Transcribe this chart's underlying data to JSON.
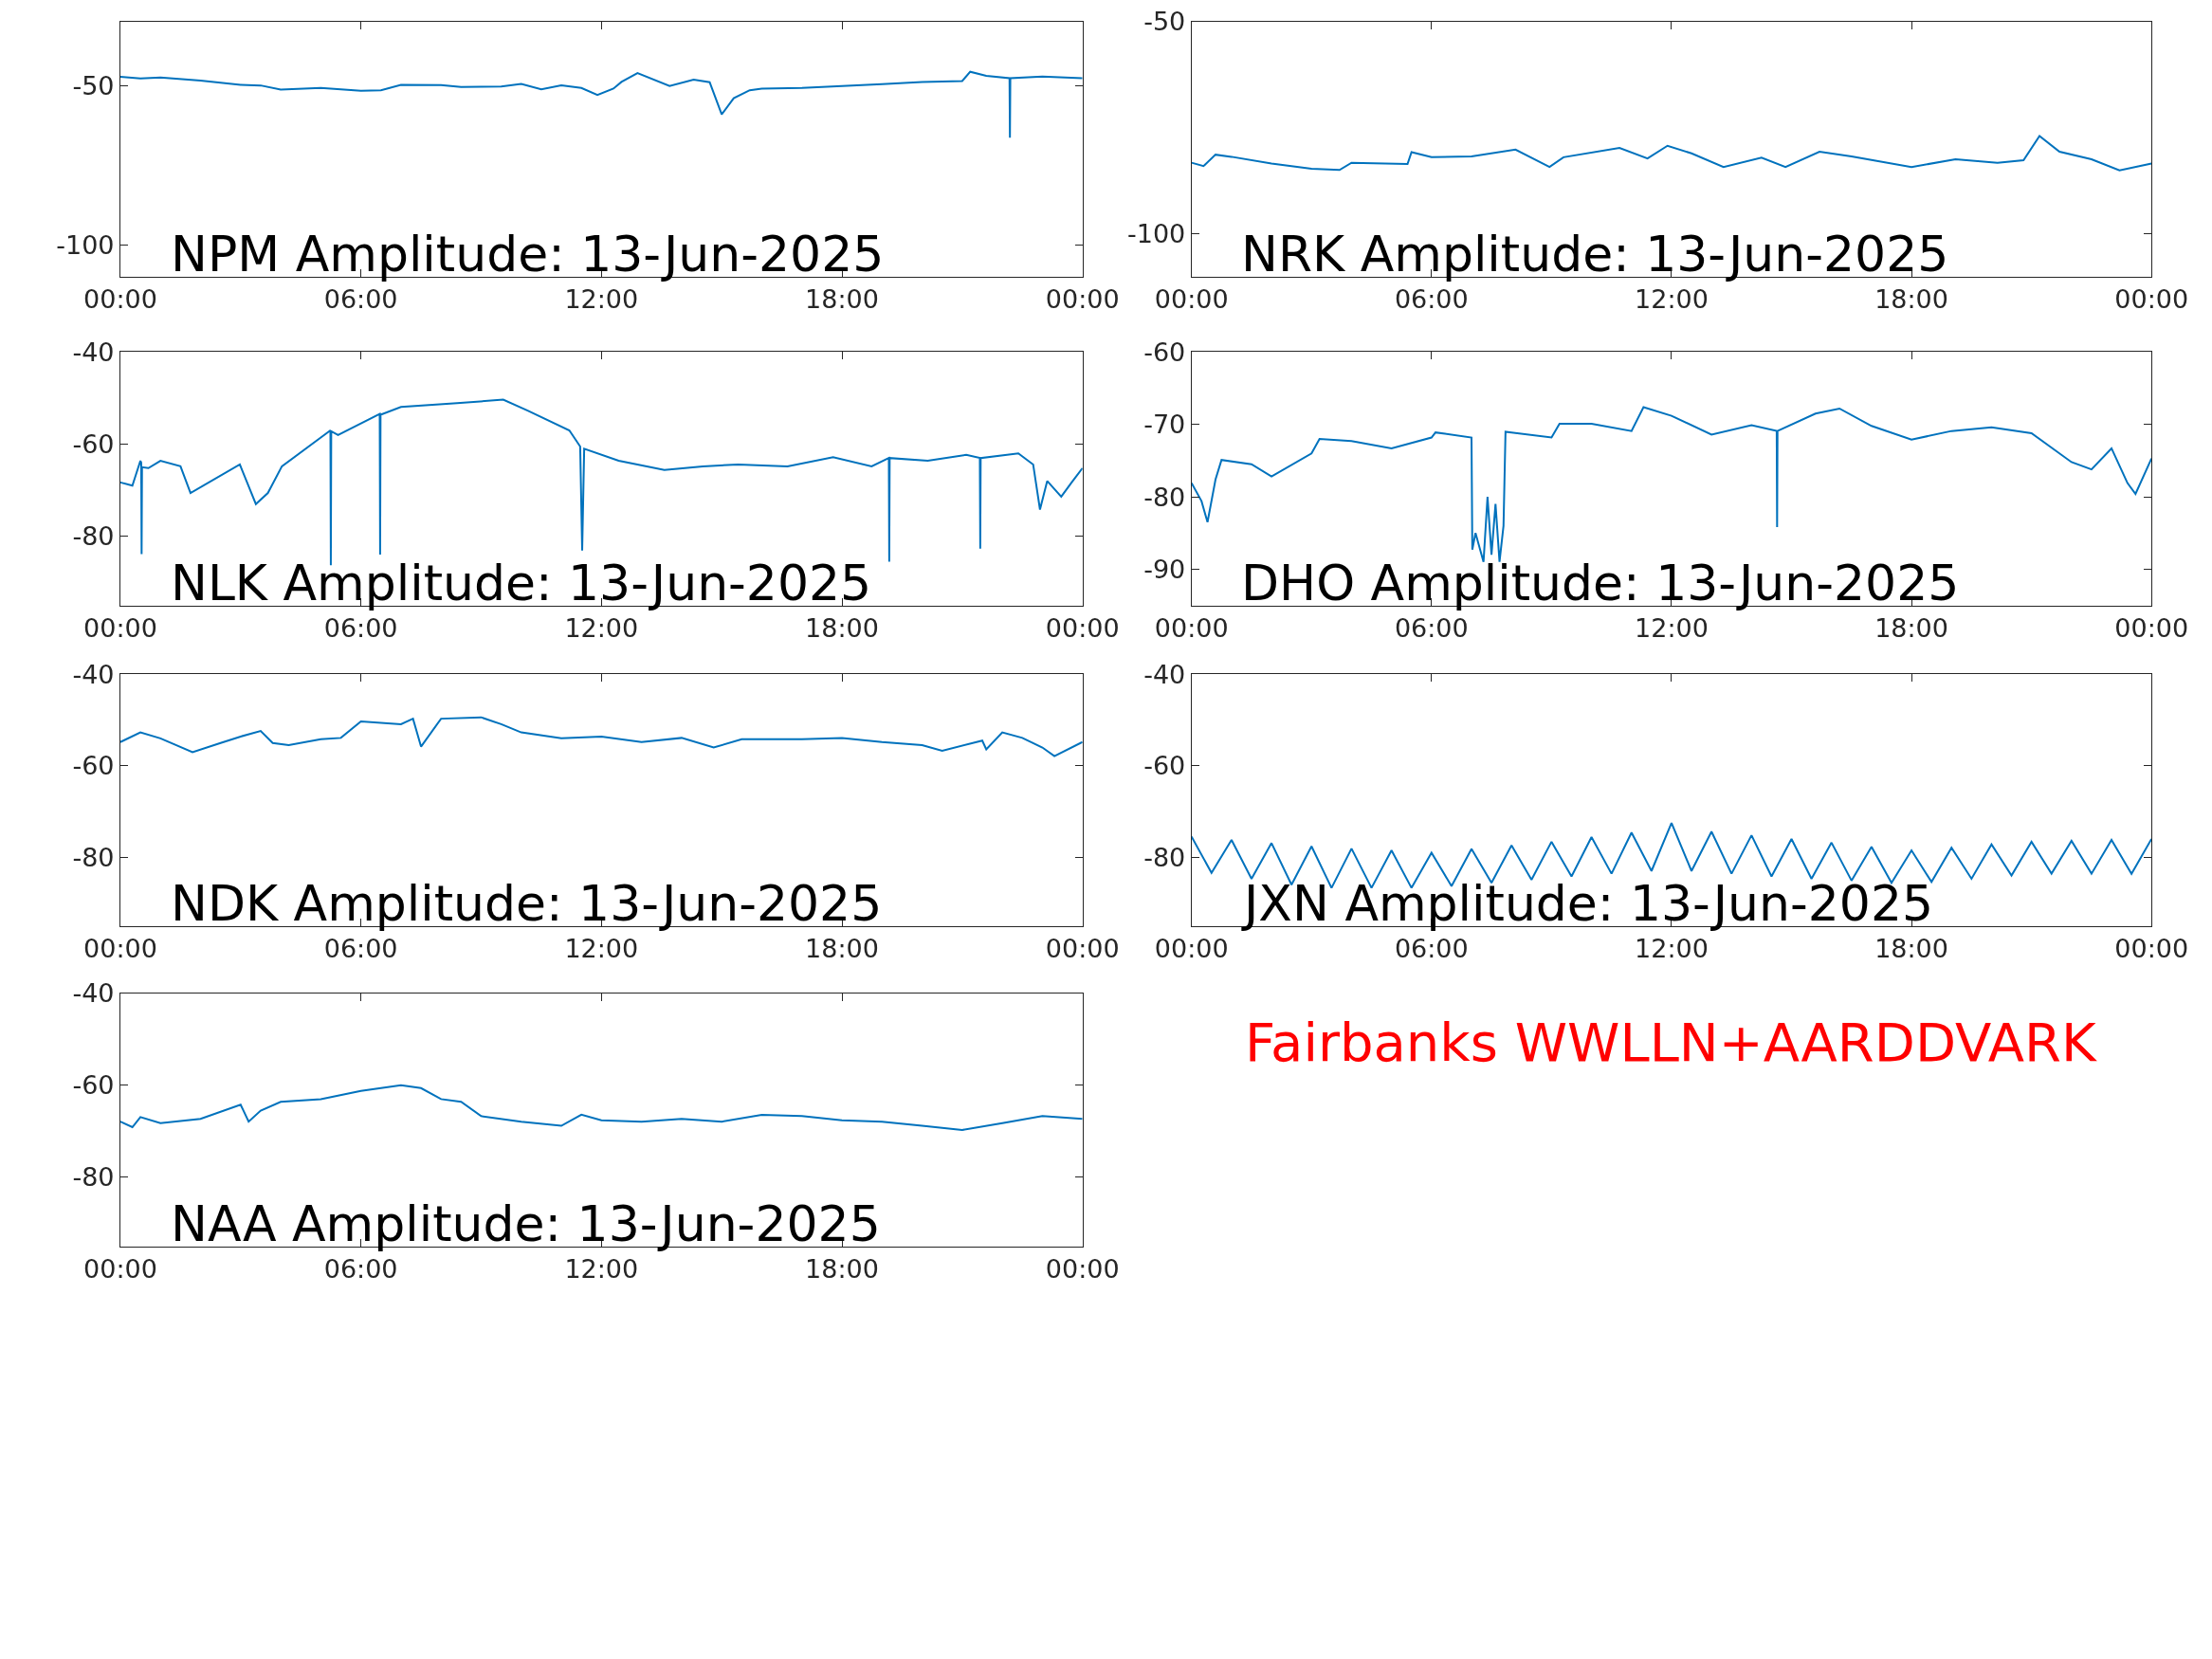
{
  "chart_data": [
    {
      "type": "line",
      "title": "NPM Amplitude: 13-Jun-2025",
      "xlim": [
        0,
        24
      ],
      "xticks": [
        {
          "value": 0,
          "label": "00:00"
        },
        {
          "value": 6,
          "label": "06:00"
        },
        {
          "value": 12,
          "label": "12:00"
        },
        {
          "value": 18,
          "label": "18:00"
        },
        {
          "value": 24,
          "label": "00:00"
        }
      ],
      "ylim": [
        -110,
        -30
      ],
      "yticks": [
        -50,
        -100
      ],
      "x": [
        0,
        0.5,
        1,
        2,
        3,
        3.5,
        4,
        5,
        6,
        6.5,
        7,
        8,
        8.5,
        9,
        9.5,
        10,
        10.5,
        11,
        11.5,
        11.9,
        12.3,
        12.5,
        12.9,
        13.7,
        14.3,
        14.7,
        15.0,
        15.3,
        15.7,
        16,
        17,
        18,
        19,
        20,
        21,
        21.2,
        21.6,
        22.18,
        22.19,
        22.2,
        23,
        24
      ],
      "series": [
        {
          "color": "#0072bd",
          "values": [
            -47.3,
            -47.8,
            -47.5,
            -48.5,
            -49.8,
            -50,
            -51.3,
            -50.8,
            -51.7,
            -51.5,
            -49.8,
            -49.9,
            -50.5,
            -50.4,
            -50.3,
            -49.5,
            -51.2,
            -50,
            -50.8,
            -53,
            -51,
            -48.9,
            -46.1,
            -50.2,
            -48.2,
            -49,
            -59.1,
            -54,
            -51.5,
            -51,
            -50.8,
            -50.2,
            -49.6,
            -48.9,
            -48.6,
            -45.7,
            -47,
            -47.7,
            -66.4,
            -47.7,
            -47.2,
            -47.7
          ]
        }
      ]
    },
    {
      "type": "line",
      "title": "NRK Amplitude: 13-Jun-2025",
      "xlim": [
        0,
        24
      ],
      "xticks": [
        {
          "value": 0,
          "label": "00:00"
        },
        {
          "value": 6,
          "label": "06:00"
        },
        {
          "value": 12,
          "label": "12:00"
        },
        {
          "value": 18,
          "label": "18:00"
        },
        {
          "value": 24,
          "label": "00:00"
        }
      ],
      "ylim": [
        -110,
        -50
      ],
      "yticks": [
        -50,
        -100
      ],
      "x": [
        0,
        0.3,
        0.6,
        1,
        2,
        3,
        3.7,
        4,
        5.4,
        5.5,
        6,
        7,
        8.1,
        8.95,
        9.3,
        10.7,
        11.4,
        11.9,
        12.5,
        13.3,
        14.25,
        14.85,
        15.7,
        16.5,
        18,
        19.1,
        20.15,
        20.8,
        21.2,
        21.7,
        22.5,
        23.2,
        24
      ],
      "series": [
        {
          "color": "#0072bd",
          "values": [
            -83.2,
            -84,
            -81.3,
            -81.8,
            -83.4,
            -84.6,
            -84.9,
            -83.2,
            -83.5,
            -80.7,
            -81.9,
            -81.7,
            -80.1,
            -84.2,
            -81.9,
            -79.7,
            -82.2,
            -79.2,
            -81,
            -84.2,
            -82,
            -84.2,
            -80.6,
            -81.7,
            -84.2,
            -82.4,
            -83.2,
            -82.6,
            -76.9,
            -80.6,
            -82.4,
            -85,
            -83.4
          ]
        }
      ]
    },
    {
      "type": "line",
      "title": "NLK Amplitude: 13-Jun-2025",
      "xlim": [
        0,
        24
      ],
      "xticks": [
        {
          "value": 0,
          "label": "00:00"
        },
        {
          "value": 6,
          "label": "06:00"
        },
        {
          "value": 12,
          "label": "12:00"
        },
        {
          "value": 18,
          "label": "18:00"
        },
        {
          "value": 24,
          "label": "00:00"
        }
      ],
      "ylim": [
        -95,
        -40
      ],
      "yticks": [
        -40,
        -60,
        -80
      ],
      "x": [
        0,
        0.3,
        0.5,
        0.52,
        0.53,
        0.54,
        0.7,
        1,
        1.5,
        1.75,
        2.98,
        3.38,
        3.68,
        4.03,
        5.24,
        5.25,
        5.26,
        5.43,
        6.47,
        6.48,
        6.49,
        7,
        8.4,
        9.55,
        10.16,
        11.2,
        11.47,
        11.52,
        11.57,
        12.43,
        13.57,
        14.53,
        15.41,
        16.64,
        17.78,
        18.74,
        19.17,
        19.18,
        19.19,
        20.14,
        21.1,
        21.44,
        21.45,
        21.46,
        22.4,
        22.77,
        22.94,
        23.12,
        23.47,
        23.73,
        24
      ],
      "series": [
        {
          "color": "#0072bd",
          "values": [
            -68.3,
            -69,
            -63.6,
            -64,
            -83.9,
            -65,
            -65.2,
            -63.6,
            -64.8,
            -70.6,
            -64.4,
            -73,
            -70.6,
            -64.8,
            -57,
            -86.3,
            -57.2,
            -58,
            -53.4,
            -84,
            -53.6,
            -51.9,
            -51.1,
            -50.3,
            -52.7,
            -57,
            -60.5,
            -83.1,
            -61,
            -63.6,
            -65.6,
            -64.8,
            -64.4,
            -64.8,
            -62.8,
            -64.8,
            -63,
            -85.5,
            -63,
            -63.6,
            -62.3,
            -63,
            -82.7,
            -63,
            -62,
            -64.4,
            -74.2,
            -68,
            -71.4,
            -68.3,
            -65.2
          ]
        }
      ]
    },
    {
      "type": "line",
      "title": "DHO Amplitude: 13-Jun-2025",
      "xlim": [
        0,
        24
      ],
      "xticks": [
        {
          "value": 0,
          "label": "00:00"
        },
        {
          "value": 6,
          "label": "06:00"
        },
        {
          "value": 12,
          "label": "12:00"
        },
        {
          "value": 18,
          "label": "18:00"
        },
        {
          "value": 24,
          "label": "00:00"
        }
      ],
      "ylim": [
        -95,
        -60
      ],
      "yticks": [
        -60,
        -70,
        -80,
        -90
      ],
      "x": [
        0,
        0.25,
        0.4,
        0.6,
        0.75,
        1.5,
        2,
        3,
        3.2,
        4,
        5,
        6,
        6.1,
        7,
        7.02,
        7.1,
        7.3,
        7.4,
        7.5,
        7.6,
        7.7,
        7.8,
        7.85,
        8,
        9,
        9.2,
        10,
        11,
        11.3,
        12,
        13,
        14,
        14.63,
        14.64,
        14.65,
        15.6,
        16.2,
        17,
        18,
        19,
        20,
        21,
        22,
        22.5,
        23,
        23.4,
        23.6,
        24
      ],
      "series": [
        {
          "color": "#0072bd",
          "values": [
            -78.1,
            -80.6,
            -83.5,
            -77.6,
            -74.9,
            -75.5,
            -77.2,
            -74,
            -72,
            -72.3,
            -73.3,
            -71.8,
            -71.1,
            -71.8,
            -87.3,
            -85,
            -89,
            -80,
            -88,
            -81,
            -89,
            -84,
            -71,
            -71.1,
            -71.8,
            -69.9,
            -69.9,
            -70.9,
            -67.6,
            -68.8,
            -71.4,
            -70.1,
            -70.9,
            -84.2,
            -70.9,
            -68.5,
            -67.8,
            -70.2,
            -72.1,
            -70.9,
            -70.4,
            -71.2,
            -75.2,
            -76.2,
            -73.3,
            -78.1,
            -79.6,
            -74.7
          ]
        }
      ]
    },
    {
      "type": "line",
      "title": "NDK Amplitude: 13-Jun-2025",
      "xlim": [
        0,
        24
      ],
      "xticks": [
        {
          "value": 0,
          "label": "00:00"
        },
        {
          "value": 6,
          "label": "06:00"
        },
        {
          "value": 12,
          "label": "12:00"
        },
        {
          "value": 18,
          "label": "18:00"
        },
        {
          "value": 24,
          "label": "00:00"
        }
      ],
      "ylim": [
        -95,
        -40
      ],
      "yticks": [
        -40,
        -60,
        -80
      ],
      "x": [
        0,
        0.5,
        1,
        1.8,
        2.5,
        3,
        3.5,
        3.8,
        4.2,
        5,
        5.5,
        6,
        7,
        7.3,
        7.5,
        8,
        9,
        9.5,
        10,
        11,
        12,
        13,
        14,
        14.8,
        15.5,
        17,
        18,
        19,
        20,
        20.5,
        21.5,
        21.6,
        22,
        22.5,
        23,
        23.3,
        24
      ],
      "series": [
        {
          "color": "#0072bd",
          "values": [
            -54.8,
            -52.7,
            -54,
            -57,
            -55,
            -53.6,
            -52.4,
            -55,
            -55.5,
            -54.2,
            -53.9,
            -50.3,
            -50.9,
            -49.7,
            -55.8,
            -49.7,
            -49.4,
            -50.9,
            -52.7,
            -54,
            -53.6,
            -54.8,
            -53.9,
            -56,
            -54.2,
            -54.2,
            -53.9,
            -54.8,
            -55.5,
            -56.7,
            -54.5,
            -56.4,
            -52.7,
            -53.9,
            -56,
            -57.9,
            -54.8
          ]
        }
      ]
    },
    {
      "type": "line",
      "title": "JXN Amplitude: 13-Jun-2025",
      "xlim": [
        0,
        24
      ],
      "xticks": [
        {
          "value": 0,
          "label": "00:00"
        },
        {
          "value": 6,
          "label": "06:00"
        },
        {
          "value": 12,
          "label": "12:00"
        },
        {
          "value": 18,
          "label": "18:00"
        },
        {
          "value": 24,
          "label": "00:00"
        }
      ],
      "ylim": [
        -95,
        -40
      ],
      "yticks": [
        -40,
        -60,
        -80
      ],
      "x": [
        0,
        0.5,
        1,
        1.5,
        2,
        2.5,
        3,
        3.5,
        4,
        4.5,
        5,
        5.5,
        6,
        6.5,
        7,
        7.5,
        8,
        8.5,
        9,
        9.5,
        10,
        10.5,
        11,
        11.5,
        12,
        12.5,
        13,
        13.5,
        14,
        14.5,
        15,
        15.5,
        16,
        16.5,
        17,
        17.5,
        18,
        18.5,
        19,
        19.5,
        20,
        20.5,
        21,
        21.5,
        22,
        22.5,
        23,
        23.5,
        24
      ],
      "series": [
        {
          "color": "#0072bd",
          "values": [
            -75.5,
            -83.4,
            -76.2,
            -84.7,
            -76.9,
            -86,
            -77.6,
            -86.7,
            -78.1,
            -86.7,
            -78.5,
            -86.7,
            -79,
            -86.3,
            -78.2,
            -85.6,
            -77.4,
            -84.9,
            -76.6,
            -84.2,
            -75.6,
            -83.6,
            -74.6,
            -83,
            -72.5,
            -83,
            -74.4,
            -83.6,
            -75.2,
            -84.2,
            -76,
            -84.7,
            -76.8,
            -85.1,
            -77.7,
            -85.6,
            -78.5,
            -85.4,
            -77.9,
            -84.7,
            -77.2,
            -84,
            -76.6,
            -83.6,
            -76.4,
            -83.6,
            -76.2,
            -83.6,
            -76
          ]
        }
      ]
    },
    {
      "type": "line",
      "title": "NAA Amplitude: 13-Jun-2025",
      "xlim": [
        0,
        24
      ],
      "xticks": [
        {
          "value": 0,
          "label": "00:00"
        },
        {
          "value": 6,
          "label": "06:00"
        },
        {
          "value": 12,
          "label": "12:00"
        },
        {
          "value": 18,
          "label": "18:00"
        },
        {
          "value": 24,
          "label": "00:00"
        }
      ],
      "ylim": [
        -95,
        -40
      ],
      "yticks": [
        -40,
        -60,
        -80
      ],
      "x": [
        0,
        0.3,
        0.5,
        1,
        2,
        3,
        3.2,
        3.5,
        4,
        5,
        6,
        7,
        7.5,
        8,
        8.5,
        9,
        10,
        11,
        11.5,
        12,
        13,
        14,
        15,
        16,
        17,
        18,
        19,
        20,
        21,
        22,
        23,
        24
      ],
      "series": [
        {
          "color": "#0072bd",
          "values": [
            -67.9,
            -69.1,
            -66.9,
            -68.2,
            -67.3,
            -64.2,
            -67.9,
            -65.5,
            -63.6,
            -63,
            -61.2,
            -60,
            -60.6,
            -63,
            -63.6,
            -66.7,
            -67.9,
            -68.8,
            -66.4,
            -67.6,
            -67.9,
            -67.3,
            -67.9,
            -66.4,
            -66.7,
            -67.6,
            -67.9,
            -68.8,
            -69.7,
            -68.2,
            -66.7,
            -67.3
          ]
        }
      ]
    },
    {
      "type": "other",
      "annotations": [
        "Fairbanks WWLLN+AARDDVARK"
      ]
    }
  ]
}
